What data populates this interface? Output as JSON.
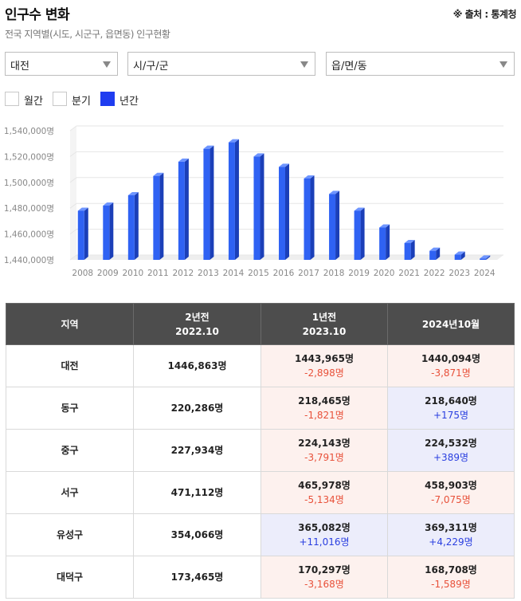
{
  "header": {
    "title": "인구수 변화",
    "source": "※ 출처 : 통계청",
    "subtitle": "전국 지역별(시도, 시군구, 읍면동) 인구현황"
  },
  "filters": {
    "sido": "대전",
    "sigungu": "시/구/군",
    "eupmyeondong": "읍/면/동"
  },
  "period_options": [
    {
      "label": "월간",
      "selected": false
    },
    {
      "label": "분기",
      "selected": false
    },
    {
      "label": "년간",
      "selected": true
    }
  ],
  "colors": {
    "bar_front": "#2f62f3",
    "bar_side": "#1b3fb8",
    "bar_top": "#6e95ff",
    "negative_text": "#e8513a",
    "positive_text": "#2a3fe0",
    "negative_bg": "#fdf1ee",
    "positive_bg": "#ecedfb",
    "header_bg": "#4d4d4d"
  },
  "chart_data": {
    "type": "bar",
    "categories": [
      "2008",
      "2009",
      "2010",
      "2011",
      "2012",
      "2013",
      "2014",
      "2015",
      "2016",
      "2017",
      "2018",
      "2019",
      "2020",
      "2021",
      "2022",
      "2023",
      "2024"
    ],
    "values": [
      1478000,
      1482000,
      1490000,
      1505000,
      1516000,
      1526000,
      1531000,
      1520000,
      1512000,
      1503000,
      1491000,
      1478000,
      1465000,
      1453000,
      1447000,
      1444000,
      1441000
    ],
    "ylim": [
      1440000,
      1540000
    ],
    "yticks": [
      1440000,
      1460000,
      1480000,
      1500000,
      1520000,
      1540000
    ],
    "ytick_labels": [
      "1,440,000명",
      "1,460,000명",
      "1,480,000명",
      "1,500,000명",
      "1,520,000명",
      "1,540,000명"
    ],
    "grid": true
  },
  "table": {
    "columns": [
      {
        "line1": "지역",
        "line2": ""
      },
      {
        "line1": "2년전",
        "line2": "2022.10"
      },
      {
        "line1": "1년전",
        "line2": "2023.10"
      },
      {
        "line1": "2024년10월",
        "line2": ""
      }
    ],
    "rows": [
      {
        "region": "대전",
        "y2": "1446,863명",
        "y1": "1443,965명",
        "y1_diff": "-2,898명",
        "y1_trend": "neg",
        "cur": "1440,094명",
        "cur_diff": "-3,871명",
        "cur_trend": "neg"
      },
      {
        "region": "동구",
        "y2": "220,286명",
        "y1": "218,465명",
        "y1_diff": "-1,821명",
        "y1_trend": "neg",
        "cur": "218,640명",
        "cur_diff": "+175명",
        "cur_trend": "pos"
      },
      {
        "region": "중구",
        "y2": "227,934명",
        "y1": "224,143명",
        "y1_diff": "-3,791명",
        "y1_trend": "neg",
        "cur": "224,532명",
        "cur_diff": "+389명",
        "cur_trend": "pos"
      },
      {
        "region": "서구",
        "y2": "471,112명",
        "y1": "465,978명",
        "y1_diff": "-5,134명",
        "y1_trend": "neg",
        "cur": "458,903명",
        "cur_diff": "-7,075명",
        "cur_trend": "neg"
      },
      {
        "region": "유성구",
        "y2": "354,066명",
        "y1": "365,082명",
        "y1_diff": "+11,016명",
        "y1_trend": "pos",
        "cur": "369,311명",
        "cur_diff": "+4,229명",
        "cur_trend": "pos"
      },
      {
        "region": "대덕구",
        "y2": "173,465명",
        "y1": "170,297명",
        "y1_diff": "-3,168명",
        "y1_trend": "neg",
        "cur": "168,708명",
        "cur_diff": "-1,589명",
        "cur_trend": "neg"
      }
    ]
  }
}
